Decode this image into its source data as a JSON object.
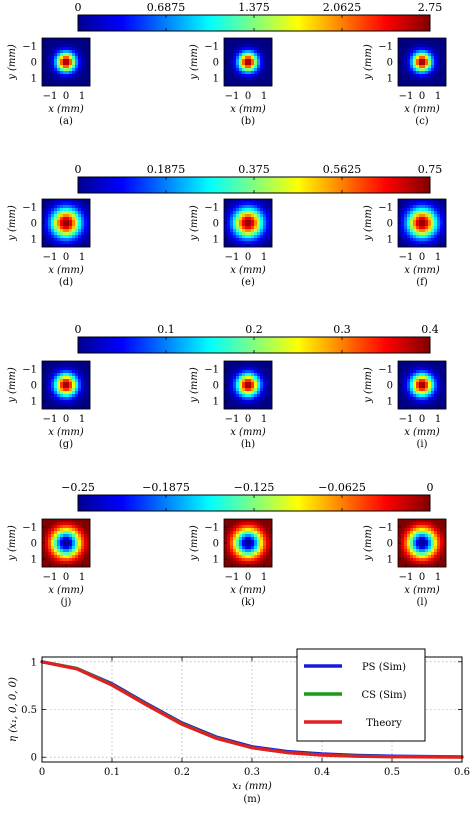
{
  "colormap": "jet",
  "colorbars": [
    {
      "ticks": [
        "0",
        "0.6875",
        "1.375",
        "2.0625",
        "2.75"
      ],
      "range": [
        0,
        2.75
      ]
    },
    {
      "ticks": [
        "0",
        "0.1875",
        "0.375",
        "0.5625",
        "0.75"
      ],
      "range": [
        0,
        0.75
      ]
    },
    {
      "ticks": [
        "0",
        "0.1",
        "0.2",
        "0.3",
        "0.4"
      ],
      "range": [
        0,
        0.4
      ]
    },
    {
      "ticks": [
        "−0.25",
        "−0.1875",
        "−0.125",
        "−0.0625",
        "0"
      ],
      "range": [
        -0.25,
        0
      ]
    }
  ],
  "maps": {
    "axis_label_x": "x (mm)",
    "axis_label_y": "y (mm)",
    "ticks": [
      "−1",
      "0",
      "1"
    ],
    "rows": [
      {
        "labels": [
          "(a)",
          "(b)",
          "(c)"
        ],
        "kind": "peak",
        "peak": 2.75,
        "sigma": [
          0.42,
          0.42,
          0.42
        ]
      },
      {
        "labels": [
          "(d)",
          "(e)",
          "(f)"
        ],
        "kind": "peak",
        "peak": 0.75,
        "sigma": [
          0.62,
          0.62,
          0.62
        ]
      },
      {
        "labels": [
          "(g)",
          "(h)",
          "(i)"
        ],
        "kind": "peak",
        "peak": 0.4,
        "sigma": [
          0.48,
          0.48,
          0.48
        ]
      },
      {
        "labels": [
          "(j)",
          "(k)",
          "(l)"
        ],
        "kind": "dip",
        "peak": -0.25,
        "sigma": [
          0.62,
          0.62,
          0.62
        ]
      }
    ]
  },
  "chart_data": {
    "type": "line",
    "panel_label": "(m)",
    "xlabel": "x₁ (mm)",
    "ylabel": "η (x₁, 0, 0, 0)",
    "xlim": [
      0,
      0.6
    ],
    "ylim": [
      -0.05,
      1.05
    ],
    "xticks": [
      "0",
      "0.1",
      "0.2",
      "0.3",
      "0.4",
      "0.5",
      "0.6"
    ],
    "yticks": [
      "0",
      "0.5",
      "1"
    ],
    "grid": true,
    "legend_position": "top-right",
    "x": [
      0,
      0.05,
      0.1,
      0.15,
      0.2,
      0.25,
      0.3,
      0.35,
      0.4,
      0.45,
      0.5,
      0.55,
      0.6
    ],
    "series": [
      {
        "name": "PS (Sim)",
        "color": "#1a1adb",
        "values": [
          1.0,
          0.93,
          0.77,
          0.56,
          0.36,
          0.21,
          0.11,
          0.06,
          0.035,
          0.02,
          0.012,
          0.008,
          0.005
        ]
      },
      {
        "name": "CS (Sim)",
        "color": "#1a9a1a",
        "values": [
          1.0,
          0.93,
          0.76,
          0.55,
          0.35,
          0.2,
          0.1,
          0.05,
          0.025,
          0.012,
          0.006,
          0.003,
          0.002
        ]
      },
      {
        "name": "Theory",
        "color": "#e02020",
        "values": [
          1.0,
          0.925,
          0.755,
          0.545,
          0.345,
          0.195,
          0.1,
          0.048,
          0.022,
          0.01,
          0.004,
          0.002,
          0.001
        ]
      }
    ]
  }
}
